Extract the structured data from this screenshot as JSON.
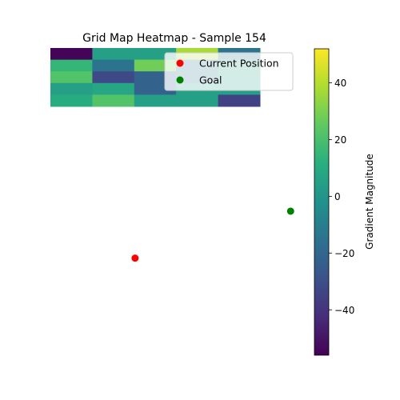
{
  "chart_data": {
    "type": "heatmap",
    "title": "Grid Map Heatmap - Sample 154",
    "grid": [
      [
        -55,
        5,
        5,
        38,
        -15
      ],
      [
        15,
        -15,
        28,
        -12,
        8
      ],
      [
        22,
        -32,
        -22,
        -12,
        8
      ],
      [
        5,
        8,
        -22,
        5,
        5
      ],
      [
        10,
        22,
        5,
        5,
        -35
      ]
    ],
    "markers": [
      {
        "name": "Current Position",
        "color": "#ff0000",
        "x": 2.02,
        "y": 17.99
      },
      {
        "name": "Goal",
        "color": "#008000",
        "x": 5.73,
        "y": 13.97
      }
    ],
    "colorbar": {
      "label": "Gradient Magnitude",
      "colormap": "viridis",
      "vmin": -56,
      "vmax": 52,
      "ticks": [
        "40",
        "20",
        "0",
        "−20",
        "−40"
      ],
      "tick_values": [
        40,
        20,
        0,
        -20,
        -40
      ]
    },
    "legend_position": "upper right",
    "axes_visible": false
  }
}
